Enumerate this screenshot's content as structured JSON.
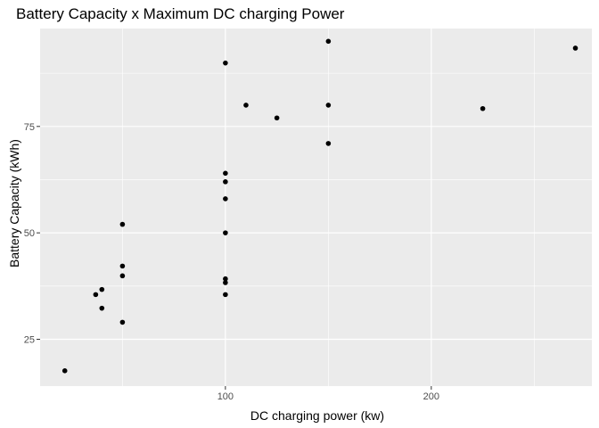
{
  "chart_data": {
    "type": "scatter",
    "title": "Battery Capacity x Maximum DC charging Power",
    "xlabel": "DC charging power (kw)",
    "ylabel": "Battery Capacity (kWh)",
    "xlim": [
      10,
      278
    ],
    "ylim": [
      14,
      98
    ],
    "x_ticks": [
      100,
      200
    ],
    "y_ticks": [
      25,
      50,
      75
    ],
    "grid": true,
    "point_color": "#000000",
    "panel_background": "#ebebeb",
    "grid_color": "#ffffff",
    "points": [
      {
        "x": 22,
        "y": 17.6
      },
      {
        "x": 37,
        "y": 35.5
      },
      {
        "x": 40,
        "y": 36.7
      },
      {
        "x": 40,
        "y": 32.3
      },
      {
        "x": 50,
        "y": 52.0
      },
      {
        "x": 50,
        "y": 42.2
      },
      {
        "x": 50,
        "y": 39.9
      },
      {
        "x": 50,
        "y": 29.0
      },
      {
        "x": 100,
        "y": 89.9
      },
      {
        "x": 100,
        "y": 64.0
      },
      {
        "x": 100,
        "y": 62.0
      },
      {
        "x": 100,
        "y": 58.0
      },
      {
        "x": 100,
        "y": 50.0
      },
      {
        "x": 100,
        "y": 39.2
      },
      {
        "x": 100,
        "y": 38.3
      },
      {
        "x": 100,
        "y": 35.5
      },
      {
        "x": 110,
        "y": 80.0
      },
      {
        "x": 125,
        "y": 77.0
      },
      {
        "x": 150,
        "y": 95.0
      },
      {
        "x": 150,
        "y": 80.0
      },
      {
        "x": 150,
        "y": 71.0
      },
      {
        "x": 225,
        "y": 79.2
      },
      {
        "x": 270,
        "y": 93.4
      }
    ]
  }
}
